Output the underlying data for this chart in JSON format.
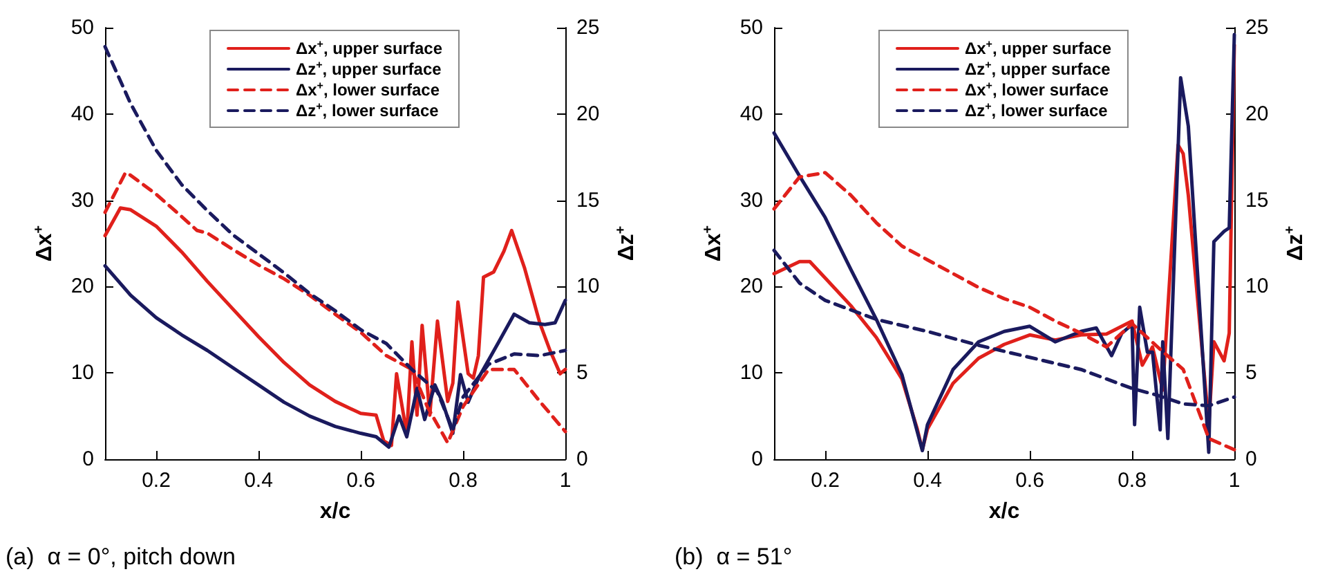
{
  "chart_data": [
    {
      "type": "line",
      "title": "(a)  α = 0°, pitch down",
      "xlabel": "x/c",
      "ylabel": "Δx$^{+}$",
      "y2label": "Δz$^{+}$",
      "xlim": [
        0.1,
        1
      ],
      "xticks": [
        0.2,
        0.4,
        0.6,
        0.8,
        1
      ],
      "ylim": [
        0,
        50
      ],
      "yticks": [
        0,
        10,
        20,
        30,
        40,
        50
      ],
      "y2lim": [
        0,
        25
      ],
      "y2ticks": [
        0,
        5,
        10,
        15,
        20,
        25
      ],
      "legend": "top",
      "grid": false,
      "marker": "none",
      "series": [
        {
          "name": "Δx$^{+}$, upper surface",
          "color": "#e0201b",
          "line_style": "solid",
          "x": [
            0.1,
            0.13,
            0.15,
            0.2,
            0.25,
            0.3,
            0.35,
            0.4,
            0.45,
            0.5,
            0.55,
            0.6,
            0.63,
            0.645,
            0.66,
            0.67,
            0.69,
            0.7,
            0.71,
            0.72,
            0.735,
            0.75,
            0.77,
            0.78,
            0.79,
            0.81,
            0.82,
            0.83,
            0.84,
            0.86,
            0.88,
            0.895,
            0.92,
            0.95,
            0.97,
            0.99,
            1.0
          ],
          "values": [
            25.9,
            29.1,
            28.9,
            27,
            24,
            20.6,
            17.4,
            14.2,
            11.2,
            8.6,
            6.7,
            5.3,
            5.1,
            2.1,
            1.6,
            9.9,
            2.9,
            13.6,
            5.1,
            15.5,
            5.1,
            16,
            6.7,
            8.8,
            18.2,
            9.9,
            9.4,
            12,
            21.1,
            21.7,
            24.1,
            26.5,
            22.2,
            15.8,
            12.6,
            9.9,
            10.4
          ]
        },
        {
          "name": "Δz$^{+}$, upper surface",
          "color": "#1a1a5e",
          "line_style": "solid",
          "axis": "y2",
          "x": [
            0.1,
            0.15,
            0.2,
            0.25,
            0.3,
            0.35,
            0.4,
            0.45,
            0.5,
            0.55,
            0.6,
            0.63,
            0.655,
            0.675,
            0.69,
            0.71,
            0.725,
            0.745,
            0.76,
            0.78,
            0.795,
            0.81,
            0.83,
            0.87,
            0.9,
            0.93,
            0.96,
            0.98,
            1.0
          ],
          "values": [
            11.2,
            9.5,
            8.2,
            7.2,
            6.3,
            5.3,
            4.3,
            3.3,
            2.5,
            1.9,
            1.5,
            1.3,
            0.7,
            2.5,
            1.3,
            4.1,
            2.3,
            4.3,
            3.3,
            1.5,
            4.9,
            3.3,
            4.7,
            6.8,
            8.4,
            7.9,
            7.8,
            7.9,
            9.2
          ]
        },
        {
          "name": "Δx$^{+}$, lower surface",
          "color": "#e0201b",
          "line_style": "dashed",
          "x": [
            0.1,
            0.14,
            0.15,
            0.2,
            0.25,
            0.28,
            0.3,
            0.35,
            0.4,
            0.45,
            0.5,
            0.55,
            0.6,
            0.65,
            0.7,
            0.73,
            0.77,
            0.8,
            0.85,
            0.9,
            0.95,
            1.0
          ],
          "values": [
            28.6,
            33.2,
            32.9,
            30.7,
            28.1,
            26.5,
            26.2,
            24.3,
            22.5,
            20.9,
            19,
            16.8,
            14.7,
            12,
            10.4,
            6.1,
            1.9,
            6.1,
            10.4,
            10.4,
            6.7,
            3.2
          ]
        },
        {
          "name": "Δz$^{+}$, lower surface",
          "color": "#1a1a5e",
          "line_style": "dashed",
          "axis": "y2",
          "x": [
            0.1,
            0.15,
            0.2,
            0.25,
            0.3,
            0.35,
            0.4,
            0.45,
            0.5,
            0.55,
            0.6,
            0.65,
            0.7,
            0.75,
            0.78,
            0.8,
            0.85,
            0.9,
            0.95,
            1.0
          ],
          "values": [
            23.9,
            20.6,
            17.9,
            15.9,
            14.4,
            13,
            11.9,
            10.8,
            9.6,
            8.6,
            7.5,
            6.7,
            5.2,
            3.9,
            1.7,
            3.6,
            5.5,
            6.1,
            6,
            6.3
          ]
        }
      ]
    },
    {
      "type": "line",
      "title": "(b)  α = 51°",
      "xlabel": "x/c",
      "ylabel": "Δx$^{+}$",
      "y2label": "Δz$^{+}$",
      "xlim": [
        0.1,
        1
      ],
      "xticks": [
        0.2,
        0.4,
        0.6,
        0.8,
        1
      ],
      "ylim": [
        0,
        50
      ],
      "yticks": [
        0,
        10,
        20,
        30,
        40,
        50
      ],
      "y2lim": [
        0,
        25
      ],
      "y2ticks": [
        0,
        5,
        10,
        15,
        20,
        25
      ],
      "legend": "top",
      "grid": false,
      "marker": "none",
      "series": [
        {
          "name": "Δx$^{+}$, upper surface",
          "color": "#e0201b",
          "line_style": "solid",
          "x": [
            0.1,
            0.15,
            0.17,
            0.2,
            0.25,
            0.3,
            0.35,
            0.38,
            0.39,
            0.4,
            0.45,
            0.5,
            0.55,
            0.6,
            0.65,
            0.7,
            0.75,
            0.8,
            0.82,
            0.84,
            0.86,
            0.89,
            0.9,
            0.91,
            0.95,
            0.96,
            0.98,
            0.99,
            1.0
          ],
          "values": [
            21.5,
            22.9,
            22.9,
            21,
            17.8,
            14.1,
            9.3,
            3.5,
            1.1,
            3.5,
            8.8,
            11.7,
            13.3,
            14.4,
            13.8,
            14.4,
            14.5,
            16,
            10.9,
            13,
            8,
            36.4,
            35.4,
            30.6,
            4,
            13.6,
            11.4,
            14.6,
            48
          ]
        },
        {
          "name": "Δz$^{+}$, upper surface",
          "color": "#1a1a5e",
          "line_style": "solid",
          "axis": "y2",
          "x": [
            0.1,
            0.15,
            0.2,
            0.25,
            0.3,
            0.35,
            0.39,
            0.4,
            0.45,
            0.5,
            0.55,
            0.6,
            0.65,
            0.7,
            0.73,
            0.76,
            0.78,
            0.8,
            0.805,
            0.815,
            0.83,
            0.84,
            0.855,
            0.86,
            0.87,
            0.895,
            0.91,
            0.95,
            0.96,
            0.98,
            0.99,
            1.0
          ],
          "values": [
            18.9,
            16.4,
            14,
            11,
            8.1,
            4.9,
            0.5,
            2,
            5.2,
            6.8,
            7.4,
            7.7,
            6.8,
            7.4,
            7.6,
            6,
            7.3,
            7.8,
            2,
            8.8,
            6.2,
            6.2,
            1.7,
            6.8,
            1.2,
            22.1,
            19.3,
            0.4,
            12.6,
            13.2,
            13.4,
            24.6
          ]
        },
        {
          "name": "Δx$^{+}$, lower surface",
          "color": "#e0201b",
          "line_style": "dashed",
          "x": [
            0.1,
            0.15,
            0.2,
            0.25,
            0.3,
            0.35,
            0.4,
            0.45,
            0.5,
            0.55,
            0.6,
            0.65,
            0.7,
            0.75,
            0.8,
            0.85,
            0.9,
            0.95,
            1.0
          ],
          "values": [
            29,
            32.7,
            33.2,
            30.6,
            27.4,
            24.7,
            23.1,
            21.5,
            19.9,
            18.6,
            17.6,
            16,
            14.6,
            13,
            15.7,
            13,
            10.4,
            2.4,
            1.1
          ]
        },
        {
          "name": "Δz$^{+}$, lower surface",
          "color": "#1a1a5e",
          "line_style": "dashed",
          "axis": "y2",
          "x": [
            0.1,
            0.15,
            0.2,
            0.3,
            0.4,
            0.5,
            0.6,
            0.7,
            0.8,
            0.85,
            0.9,
            0.95,
            1.0
          ],
          "values": [
            12.1,
            10.2,
            9.2,
            8.1,
            7.4,
            6.6,
            5.9,
            5.2,
            4.1,
            3.7,
            3.2,
            3.1,
            3.6
          ]
        }
      ]
    }
  ]
}
